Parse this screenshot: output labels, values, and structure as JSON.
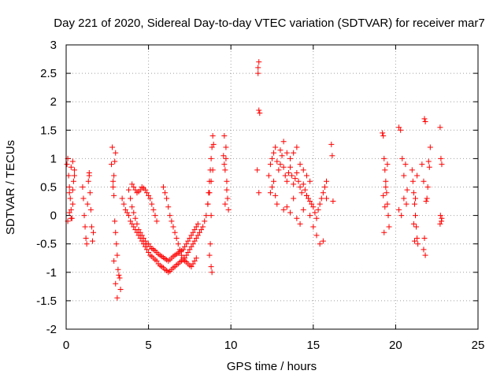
{
  "chart_data": {
    "type": "scatter",
    "title": "Day 221 of 2020, Sidereal Day-to-day VTEC variation (SDTVAR) for receiver mar7",
    "xlabel": "GPS time / hours",
    "ylabel": "SDTVAR / TECUs",
    "xlim": [
      0,
      25
    ],
    "ylim": [
      -2,
      3
    ],
    "xticks": [
      0,
      5,
      10,
      15,
      20,
      25
    ],
    "xtick_labels": [
      "0",
      "5",
      "10",
      "15",
      "20",
      "25"
    ],
    "yticks": [
      -2,
      -1.5,
      -1,
      -0.5,
      0,
      0.5,
      1,
      1.5,
      2,
      2.5,
      3
    ],
    "ytick_labels": [
      "-2",
      "-1.5",
      "-1",
      "-0.5",
      "0",
      "0.5",
      "1",
      "1.5",
      "2",
      "2.5",
      "3"
    ],
    "grid": true,
    "marker": "+",
    "marker_color": "#ff0000",
    "series": [
      {
        "name": "SDTVAR",
        "x": [
          0.05,
          0.1,
          0.15,
          0.2,
          0.25,
          0.3,
          0.35,
          0.4,
          0.45,
          0.5,
          0.1,
          0.2,
          0.3,
          0.4,
          0.5,
          0.2,
          0.3,
          0.4,
          1.0,
          1.05,
          1.1,
          1.15,
          1.2,
          1.25,
          1.4,
          1.45,
          1.5,
          1.55,
          1.6,
          1.65,
          1.3,
          1.35,
          1.4,
          2.75,
          2.8,
          2.85,
          2.9,
          2.95,
          3.0,
          3.05,
          3.1,
          3.15,
          3.2,
          3.25,
          3.3,
          2.85,
          2.9,
          2.95,
          3.0,
          2.9,
          3.0,
          3.1,
          3.4,
          3.5,
          3.6,
          3.7,
          3.8,
          3.9,
          4.0,
          4.1,
          4.2,
          4.3,
          4.4,
          4.5,
          4.6,
          4.7,
          4.8,
          4.9,
          5.0,
          5.1,
          5.2,
          5.3,
          5.4,
          5.5,
          5.6,
          5.7,
          5.8,
          5.9,
          6.0,
          6.1,
          6.2,
          6.3,
          6.4,
          6.5,
          6.6,
          6.7,
          6.8,
          6.9,
          7.0,
          7.1,
          7.2,
          7.3,
          7.4,
          7.5,
          7.6,
          7.7,
          7.8,
          7.9,
          8.0,
          8.1,
          8.2,
          8.3,
          8.4,
          8.5,
          8.6,
          8.7,
          8.8,
          8.9,
          3.8,
          3.9,
          4.0,
          4.1,
          4.2,
          4.3,
          4.4,
          4.5,
          4.6,
          4.7,
          4.8,
          4.9,
          5.0,
          5.1,
          5.2,
          5.3,
          5.4,
          5.5,
          5.6,
          5.7,
          5.8,
          5.9,
          6.0,
          6.1,
          6.2,
          6.3,
          6.4,
          6.5,
          6.6,
          6.7,
          6.8,
          6.9,
          7.0,
          7.1,
          7.2,
          7.3,
          7.4,
          7.5,
          7.6,
          7.7,
          7.8,
          7.9,
          8.0,
          4.0,
          4.1,
          4.2,
          4.3,
          4.4,
          4.5,
          4.6,
          4.7,
          4.8,
          4.9,
          5.0,
          5.1,
          5.2,
          5.3,
          5.4,
          5.5,
          5.9,
          6.0,
          6.1,
          6.2,
          6.3,
          6.4,
          6.5,
          6.6,
          6.7,
          6.8,
          6.9,
          7.0,
          7.1,
          7.2,
          7.3,
          7.4,
          7.5,
          7.6,
          7.7,
          7.8,
          7.9,
          8.6,
          8.65,
          8.7,
          8.75,
          8.8,
          8.85,
          8.9,
          8.95,
          8.7,
          8.8,
          8.85,
          8.75,
          8.8,
          9.55,
          9.6,
          9.65,
          9.7,
          9.75,
          9.8,
          9.85,
          9.6,
          9.7,
          9.65,
          9.75,
          11.65,
          11.7,
          11.65,
          11.7,
          11.75,
          11.6,
          11.7,
          12.3,
          12.4,
          12.5,
          12.6,
          12.7,
          12.8,
          12.9,
          13.0,
          13.1,
          13.2,
          13.3,
          13.4,
          13.5,
          13.6,
          13.7,
          13.8,
          13.9,
          14.0,
          14.1,
          14.2,
          14.3,
          14.4,
          14.5,
          14.6,
          14.7,
          14.8,
          14.9,
          15.0,
          15.1,
          15.2,
          15.3,
          15.4,
          15.5,
          15.6,
          15.7,
          15.8,
          12.4,
          12.5,
          12.6,
          12.7,
          12.8,
          13.2,
          13.4,
          13.6,
          13.8,
          14.0,
          14.2,
          14.4,
          14.6,
          14.8,
          15.0,
          15.2,
          15.4,
          15.6,
          13.0,
          13.2,
          13.4,
          13.6,
          13.8,
          14.0,
          14.2,
          14.4,
          14.6,
          14.8,
          15.8,
          16.1,
          16.15,
          16.2,
          19.2,
          19.25,
          19.3,
          19.35,
          19.4,
          19.45,
          19.5,
          19.55,
          19.6,
          19.3,
          19.4,
          19.5,
          19.25,
          19.35,
          20.2,
          20.3,
          20.4,
          20.5,
          20.6,
          20.7,
          20.2,
          20.35,
          20.5,
          20.65,
          21.0,
          21.05,
          21.1,
          21.15,
          21.2,
          21.25,
          21.3,
          21.35,
          21.1,
          21.2,
          21.3,
          21.15,
          21.6,
          21.7,
          21.75,
          21.8,
          21.9,
          22.0,
          22.05,
          22.1,
          21.7,
          21.8,
          21.95,
          21.85,
          21.75,
          22.7,
          22.75,
          22.8,
          22.72,
          22.78,
          22.7,
          22.8
        ],
        "y": [
          0.9,
          1.0,
          0.7,
          0.5,
          0.3,
          0.1,
          -0.05,
          0.2,
          0.6,
          0.8,
          -0.1,
          0.4,
          0.85,
          0.95,
          0.7,
          0.05,
          -0.05,
          0.45,
          0.5,
          0.3,
          0.0,
          -0.2,
          -0.4,
          -0.5,
          0.7,
          0.4,
          0.1,
          -0.2,
          -0.45,
          -0.3,
          0.2,
          0.6,
          0.75,
          0.9,
          1.2,
          0.6,
          0.35,
          -0.1,
          -0.3,
          -0.5,
          -0.7,
          -0.95,
          -1.05,
          -1.1,
          -1.3,
          0.5,
          0.7,
          0.95,
          1.1,
          -0.8,
          -1.2,
          -1.45,
          0.3,
          0.2,
          0.1,
          0.05,
          0.0,
          -0.1,
          -0.15,
          -0.2,
          -0.25,
          -0.3,
          -0.35,
          -0.4,
          -0.45,
          -0.5,
          -0.55,
          -0.6,
          -0.65,
          -0.7,
          -0.72,
          -0.75,
          -0.78,
          -0.8,
          -0.85,
          -0.88,
          -0.9,
          -0.92,
          -0.95,
          -0.97,
          -1.0,
          -0.98,
          -0.95,
          -0.92,
          -0.9,
          -0.87,
          -0.85,
          -0.82,
          -0.8,
          -0.78,
          -0.75,
          -0.7,
          -0.65,
          -0.6,
          -0.55,
          -0.5,
          -0.45,
          -0.4,
          -0.35,
          -0.3,
          -0.25,
          -0.2,
          -0.1,
          0.0,
          0.2,
          0.4,
          0.6,
          0.8,
          0.45,
          0.3,
          0.15,
          0.05,
          -0.05,
          -0.15,
          -0.25,
          -0.3,
          -0.35,
          -0.4,
          -0.45,
          -0.5,
          -0.5,
          -0.55,
          -0.58,
          -0.6,
          -0.62,
          -0.65,
          -0.68,
          -0.7,
          -0.72,
          -0.74,
          -0.76,
          -0.78,
          -0.8,
          -0.78,
          -0.75,
          -0.72,
          -0.7,
          -0.68,
          -0.66,
          -0.64,
          -0.62,
          -0.6,
          -0.55,
          -0.5,
          -0.45,
          -0.4,
          -0.35,
          -0.3,
          -0.25,
          -0.2,
          -0.15,
          0.55,
          0.5,
          0.45,
          0.4,
          0.42,
          0.45,
          0.5,
          0.48,
          0.45,
          0.4,
          0.35,
          0.3,
          0.2,
          0.1,
          0.0,
          -0.1,
          0.5,
          0.4,
          0.3,
          0.15,
          0.0,
          -0.1,
          -0.2,
          -0.3,
          -0.4,
          -0.5,
          -0.6,
          -0.7,
          -0.75,
          -0.8,
          -0.82,
          -0.85,
          -0.88,
          -0.9,
          -0.85,
          -0.8,
          -0.75,
          0.2,
          0.4,
          0.6,
          0.8,
          1.0,
          1.2,
          1.4,
          1.25,
          -0.7,
          -0.9,
          -1.0,
          -0.5,
          0.0,
          1.05,
          0.9,
          0.8,
          1.0,
          0.6,
          0.3,
          0.1,
          1.4,
          1.2,
          0.2,
          0.45,
          2.6,
          2.7,
          2.5,
          1.85,
          1.8,
          0.8,
          0.4,
          0.7,
          0.9,
          1.0,
          1.1,
          1.2,
          0.95,
          0.8,
          0.9,
          1.05,
          0.85,
          0.7,
          0.6,
          0.75,
          0.85,
          0.7,
          0.55,
          0.65,
          0.75,
          0.6,
          0.5,
          0.4,
          0.55,
          0.45,
          0.35,
          0.3,
          0.25,
          0.2,
          0.15,
          0.05,
          -0.05,
          0.1,
          0.2,
          0.3,
          0.4,
          0.5,
          0.6,
          0.4,
          0.5,
          0.6,
          0.35,
          0.2,
          0.1,
          0.15,
          0.05,
          0.3,
          -0.05,
          -0.15,
          0.1,
          0.35,
          0.0,
          -0.2,
          -0.35,
          -0.5,
          -0.45,
          1.15,
          1.3,
          1.1,
          1.0,
          1.1,
          1.2,
          0.9,
          0.8,
          0.7,
          0.6,
          0.3,
          1.25,
          1.05,
          0.25,
          1.45,
          1.4,
          1.0,
          0.8,
          0.6,
          0.4,
          0.2,
          0.0,
          -0.2,
          -0.3,
          0.5,
          0.9,
          0.35,
          0.15,
          1.55,
          1.5,
          1.0,
          0.7,
          0.9,
          0.45,
          0.1,
          0.0,
          0.3,
          0.2,
          0.8,
          0.6,
          0.4,
          0.2,
          0.0,
          -0.2,
          -0.4,
          -0.5,
          -0.15,
          0.3,
          0.7,
          -0.45,
          0.9,
          0.6,
          1.7,
          1.65,
          0.3,
          0.95,
          0.85,
          1.2,
          -0.6,
          -0.7,
          0.5,
          0.25,
          -0.4,
          1.55,
          1.0,
          0.9,
          0.0,
          -0.1,
          -0.15,
          -0.05
        ]
      }
    ]
  }
}
